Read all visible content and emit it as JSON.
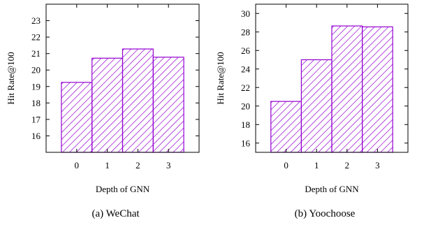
{
  "colors": {
    "bar": "#9400D3",
    "axis": "#000000",
    "background": "#ffffff"
  },
  "chart_data": [
    {
      "type": "bar",
      "caption": "(a)  WeChat",
      "categories": [
        "0",
        "1",
        "2",
        "3"
      ],
      "values": [
        19.25,
        20.72,
        21.28,
        20.78
      ],
      "xlabel": "Depth of GNN",
      "ylabel": "Hit Rate@100",
      "yticks": [
        16,
        17,
        18,
        19,
        20,
        21,
        22,
        23
      ],
      "ylim": [
        15,
        24
      ],
      "bar_fill": "diagonal-hatch",
      "grid": false,
      "legend": "none"
    },
    {
      "type": "bar",
      "caption": "(b)  Yoochoose",
      "categories": [
        "0",
        "1",
        "2",
        "3"
      ],
      "values": [
        20.5,
        25.0,
        28.65,
        28.55
      ],
      "xlabel": "Depth of GNN",
      "ylabel": "Hit Rate@100",
      "yticks": [
        16,
        18,
        20,
        22,
        24,
        26,
        28,
        30
      ],
      "ylim": [
        15,
        31
      ],
      "bar_fill": "diagonal-hatch",
      "grid": false,
      "legend": "none"
    }
  ]
}
